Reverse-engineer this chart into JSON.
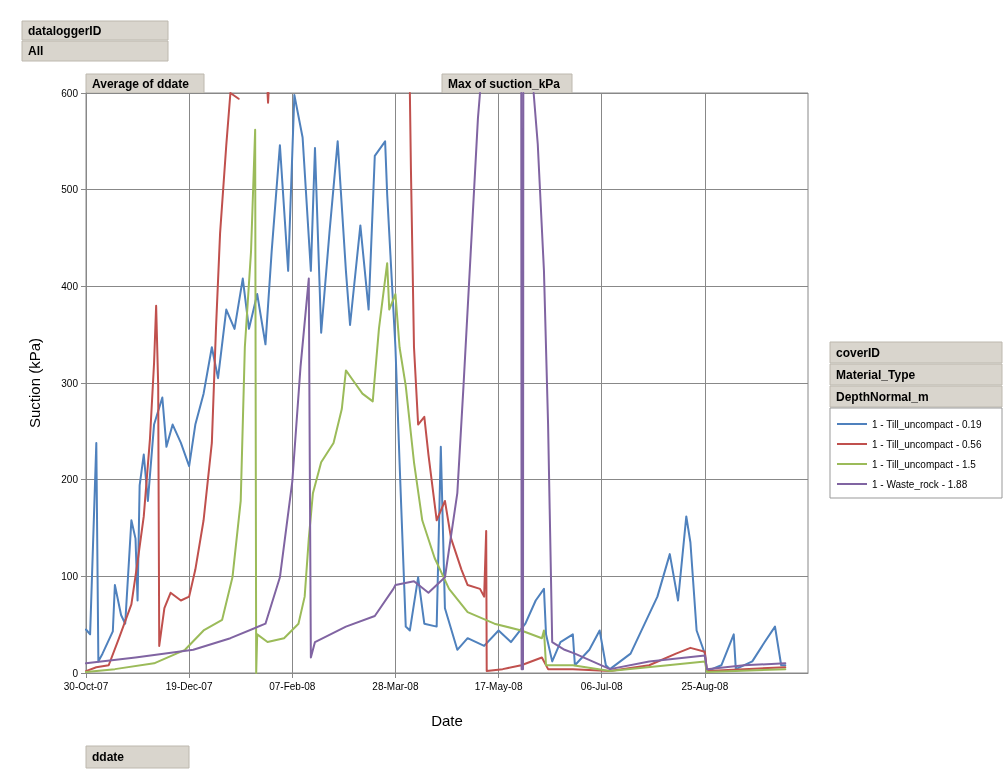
{
  "chart_data": {
    "type": "line",
    "xlabel": "Date",
    "ylabel": "Suction (kPa)",
    "legend_title": "coverID\nMaterial_Type\nDepthNormal_m",
    "annotations": [
      "dataloggerID",
      "All",
      "Average of ddate",
      "Max of suction_kPa",
      "ddate"
    ],
    "xlim": [
      "2007-10-30",
      "2008-10-14"
    ],
    "xticks": [
      {
        "value": "2007-10-30",
        "label": "30-Oct-07"
      },
      {
        "value": "2007-12-19",
        "label": "19-Dec-07"
      },
      {
        "value": "2008-02-07",
        "label": "07-Feb-08"
      },
      {
        "value": "2008-03-28",
        "label": "28-Mar-08"
      },
      {
        "value": "2008-05-17",
        "label": "17-May-08"
      },
      {
        "value": "2008-07-06",
        "label": "06-Jul-08"
      },
      {
        "value": "2008-08-25",
        "label": "25-Aug-08"
      }
    ],
    "ylim": [
      0,
      600
    ],
    "yticks": [
      0,
      100,
      200,
      300,
      400,
      500,
      600
    ],
    "grid": true,
    "legend": "right",
    "marker": "none",
    "line_style": "solid",
    "series": [
      {
        "name": "1 - Till_uncompact - 0.19",
        "color": "#4f81bd",
        "x": [
          "2007-10-30",
          "2007-11-01",
          "2007-11-04",
          "2007-11-05",
          "2007-11-07",
          "2007-11-12",
          "2007-11-13",
          "2007-11-16",
          "2007-11-18",
          "2007-11-21",
          "2007-11-23",
          "2007-11-24",
          "2007-11-25",
          "2007-11-27",
          "2007-11-29",
          "2007-12-02",
          "2007-12-06",
          "2007-12-08",
          "2007-12-11",
          "2007-12-15",
          "2007-12-19",
          "2007-12-22",
          "2007-12-26",
          "2007-12-30",
          "2008-01-02",
          "2008-01-06",
          "2008-01-10",
          "2008-01-14",
          "2008-01-17",
          "2008-01-21",
          "2008-01-25",
          "2008-01-28",
          "2008-02-01",
          "2008-02-05",
          "2008-02-08",
          "2008-02-12",
          "2008-02-16",
          "2008-02-18",
          "2008-02-21",
          "2008-02-25",
          "2008-02-29",
          "2008-03-04",
          "2008-03-06",
          "2008-03-11",
          "2008-03-15",
          "2008-03-18",
          "2008-03-23",
          "2008-03-24",
          "2008-03-27",
          "2008-03-28",
          "2008-03-30",
          "2008-04-02",
          "2008-04-04",
          "2008-04-08",
          "2008-04-11",
          "2008-04-17",
          "2008-04-19",
          "2008-04-21",
          "2008-04-27",
          "2008-05-02",
          "2008-05-10",
          "2008-05-17",
          "2008-05-23",
          "2008-05-30",
          "2008-06-04",
          "2008-06-08",
          "2008-06-09",
          "2008-06-12",
          "2008-06-16",
          "2008-06-22",
          "2008-06-23",
          "2008-06-30",
          "2008-07-05",
          "2008-07-08",
          "2008-07-10",
          "2008-07-20",
          "2008-08-02",
          "2008-08-08",
          "2008-08-12",
          "2008-08-16",
          "2008-08-18",
          "2008-08-21",
          "2008-08-25",
          "2008-08-26",
          "2008-09-02",
          "2008-09-08",
          "2008-09-09",
          "2008-09-17",
          "2008-09-23",
          "2008-09-28",
          "2008-10-01",
          "2008-10-03"
        ],
        "values": [
          45,
          40,
          238,
          12,
          20,
          43,
          91,
          60,
          51,
          158,
          139,
          75,
          194,
          226,
          178,
          257,
          285,
          234,
          257,
          238,
          214,
          257,
          289,
          337,
          305,
          376,
          356,
          408,
          356,
          392,
          340,
          436,
          546,
          416,
          598,
          554,
          416,
          543,
          352,
          455,
          550,
          416,
          360,
          463,
          376,
          535,
          550,
          495,
          376,
          337,
          218,
          48,
          44,
          99,
          51,
          48,
          234,
          67,
          24,
          36,
          28,
          44,
          32,
          51,
          75,
          87,
          40,
          12,
          32,
          40,
          8,
          24,
          44,
          8,
          4,
          20,
          79,
          123,
          75,
          162,
          135,
          44,
          20,
          2,
          8,
          40,
          4,
          12,
          32,
          48,
          8,
          8
        ]
      },
      {
        "name": "1 - Till_uncompact - 0.56",
        "color": "#c0504d",
        "x": [
          "2007-10-30",
          "2007-11-04",
          "2007-11-10",
          "2007-11-15",
          "2007-11-21",
          "2007-11-24",
          "2007-11-27",
          "2007-11-30",
          "2007-12-02",
          "2007-12-03",
          "2007-12-04T00:00",
          "2007-12-04T12:00",
          "2007-12-07",
          "2007-12-10",
          "2007-12-15",
          "2007-12-19",
          "2007-12-22",
          "2007-12-26",
          "2007-12-30",
          "2008-01-01",
          "2008-01-03",
          "2008-01-06",
          "2008-01-08",
          "2008-01-12",
          "2008-01-14",
          "2008-01-26T00:00",
          "2008-01-26T06:00",
          "2008-01-26T12:00",
          "2008-01-27",
          "2008-04-04T00:00",
          "2008-04-04T12:00",
          "2008-04-06",
          "2008-04-08",
          "2008-04-11",
          "2008-04-13",
          "2008-04-17",
          "2008-04-21",
          "2008-04-24",
          "2008-04-29",
          "2008-05-02",
          "2008-05-08",
          "2008-05-10",
          "2008-05-11T00:00",
          "2008-05-11T06:00",
          "2008-05-19",
          "2008-05-28",
          "2008-06-07",
          "2008-06-10",
          "2008-06-22",
          "2008-07-10",
          "2008-07-29",
          "2008-08-11",
          "2008-08-18",
          "2008-08-25",
          "2008-08-26",
          "2008-09-13",
          "2008-10-03"
        ],
        "values": [
          2,
          6,
          8,
          36,
          71,
          115,
          162,
          242,
          321,
          380,
          297,
          28,
          67,
          83,
          75,
          79,
          107,
          158,
          238,
          356,
          455,
          546,
          600,
          594,
          null,
          600,
          590,
          600,
          null,
          600,
          523,
          337,
          257,
          265,
          226,
          158,
          178,
          139,
          107,
          91,
          87,
          79,
          147,
          2,
          4,
          8,
          16,
          4,
          4,
          2,
          8,
          20,
          26,
          22,
          2,
          4,
          6
        ]
      },
      {
        "name": "1 - Till_uncompact - 1.5",
        "color": "#9bbb59",
        "x": [
          "2007-10-30",
          "2007-11-13",
          "2007-12-02",
          "2007-12-17",
          "2007-12-26",
          "2008-01-04",
          "2008-01-09",
          "2008-01-13",
          "2008-01-15",
          "2008-01-18",
          "2008-01-20T00:00",
          "2008-01-20T12:00",
          "2008-01-21",
          "2008-01-26",
          "2008-02-03",
          "2008-02-10",
          "2008-02-13",
          "2008-02-15",
          "2008-02-17",
          "2008-02-21",
          "2008-02-27",
          "2008-03-02",
          "2008-03-04",
          "2008-03-08",
          "2008-03-12",
          "2008-03-17",
          "2008-03-20",
          "2008-03-24",
          "2008-03-25",
          "2008-03-28",
          "2008-03-30",
          "2008-04-02",
          "2008-04-06",
          "2008-04-10",
          "2008-04-16",
          "2008-04-23",
          "2008-05-02",
          "2008-05-15",
          "2008-05-28",
          "2008-06-07",
          "2008-06-08",
          "2008-06-09",
          "2008-06-22",
          "2008-07-10",
          "2008-08-07",
          "2008-08-25",
          "2008-08-26",
          "2008-10-03"
        ],
        "values": [
          1,
          4,
          10,
          24,
          44,
          55,
          99,
          178,
          337,
          436,
          562,
          0,
          40,
          32,
          36,
          51,
          79,
          139,
          186,
          218,
          238,
          273,
          313,
          301,
          289,
          281,
          356,
          424,
          376,
          392,
          337,
          297,
          218,
          158,
          119,
          87,
          63,
          51,
          44,
          36,
          44,
          8,
          8,
          2,
          8,
          12,
          1,
          4
        ]
      },
      {
        "name": "1 - Waste_rock - 1.88",
        "color": "#8064a2",
        "x": [
          "2007-10-30",
          "2007-11-23",
          "2007-12-21",
          "2008-01-08",
          "2008-01-25",
          "2008-02-01",
          "2008-02-07",
          "2008-02-11",
          "2008-02-15",
          "2008-02-16",
          "2008-02-18",
          "2008-03-04",
          "2008-03-18",
          "2008-03-27",
          "2008-03-28",
          "2008-04-06",
          "2008-04-13",
          "2008-04-21",
          "2008-04-27",
          "2008-04-30",
          "2008-05-04",
          "2008-05-07",
          "2008-05-08",
          "2008-05-09",
          "2008-05-28T00:00",
          "2008-05-28T04:00",
          "2008-05-28T20:00",
          "2008-05-29",
          "2008-05-31",
          "2008-06-03",
          "2008-06-05",
          "2008-06-08",
          "2008-06-10",
          "2008-06-12",
          "2008-06-18",
          "2008-06-23",
          "2008-07-10",
          "2008-07-29",
          "2008-08-25",
          "2008-08-26",
          "2008-09-13",
          "2008-10-03"
        ],
        "values": [
          10,
          16,
          24,
          36,
          51,
          99,
          198,
          317,
          408,
          16,
          32,
          48,
          59,
          87,
          91,
          95,
          83,
          99,
          186,
          297,
          455,
          574,
          600,
          null,
          600,
          4,
          4,
          600,
          null,
          600,
          547,
          416,
          257,
          32,
          24,
          20,
          4,
          12,
          18,
          4,
          8,
          10
        ]
      }
    ]
  }
}
